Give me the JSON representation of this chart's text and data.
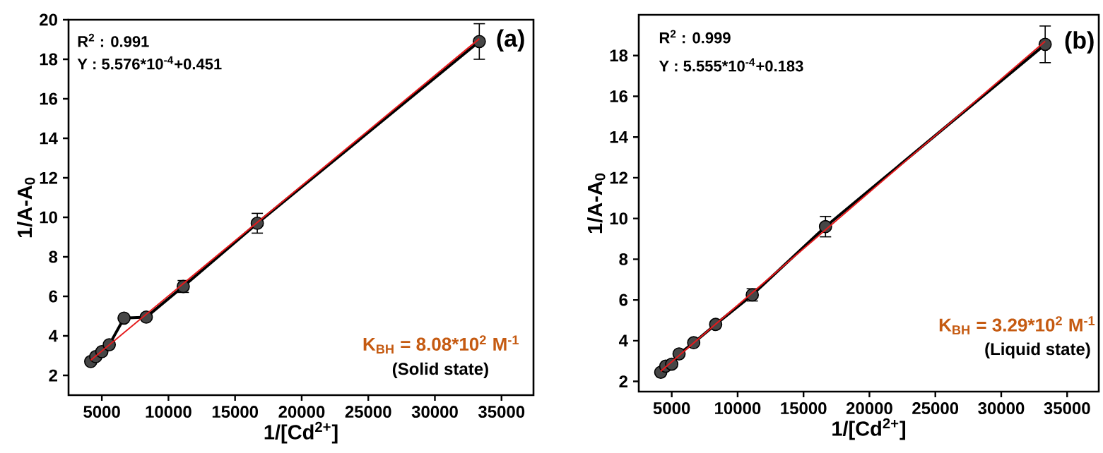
{
  "chart_data": [
    {
      "type": "line",
      "xlabel": "1/[Cd$^{2+}$]",
      "ylabel": "1/A-A$_{0}$",
      "xlim": [
        2500,
        37400
      ],
      "ylim": [
        1,
        20
      ],
      "xticks": [
        5000,
        10000,
        15000,
        20000,
        25000,
        30000,
        35000
      ],
      "yticks": [
        2,
        4,
        6,
        8,
        10,
        12,
        14,
        16,
        18,
        20
      ],
      "annotations": [
        "R$^{2}$ : 0.991",
        "Y   : 5.576*10$^{-4}$+0.451",
        "(a)",
        "K$_{BH}$ = 8.08*10$^{2}$ M$^{-1}$",
        "(Solid state)"
      ],
      "series": [
        {
          "color": "#000000",
          "marker": "circle",
          "x": [
            4167,
            4545,
            5000,
            5556,
            6667,
            8333,
            11111,
            16667,
            33333
          ],
          "values": [
            2.7,
            2.95,
            3.2,
            3.55,
            4.9,
            4.95,
            6.5,
            9.7,
            18.9
          ],
          "errors": [
            null,
            null,
            null,
            null,
            null,
            null,
            0.3,
            0.5,
            0.9
          ]
        },
        {
          "color": "#e41a1c",
          "marker": "none",
          "x": [
            4167,
            33333
          ],
          "values": [
            2.77,
            19.04
          ]
        }
      ]
    },
    {
      "type": "line",
      "xlabel": "1/[Cd$^{2+}$]",
      "ylabel": "1/A-A$_{0}$",
      "xlim": [
        2500,
        37400
      ],
      "ylim": [
        1.5,
        20
      ],
      "xticks": [
        5000,
        10000,
        15000,
        20000,
        25000,
        30000,
        35000
      ],
      "yticks": [
        2,
        4,
        6,
        8,
        10,
        12,
        14,
        16,
        18
      ],
      "annotations": [
        "R$^{2}$ : 0.999",
        "Y   : 5.555*10$^{-4}$+0.183",
        "(b)",
        "K$_{BH}$ = 3.29*10$^{2}$ M$^{-1}$",
        "(Liquid state)"
      ],
      "series": [
        {
          "color": "#000000",
          "marker": "circle",
          "x": [
            4167,
            4545,
            5000,
            5556,
            6667,
            8333,
            11111,
            16667,
            33333
          ],
          "values": [
            2.45,
            2.75,
            2.85,
            3.35,
            3.9,
            4.8,
            6.25,
            9.6,
            18.55
          ],
          "errors": [
            null,
            null,
            null,
            null,
            null,
            null,
            0.3,
            0.5,
            0.9
          ]
        },
        {
          "color": "#e41a1c",
          "marker": "none",
          "x": [
            4167,
            33333
          ],
          "values": [
            2.5,
            18.7
          ]
        }
      ]
    }
  ]
}
